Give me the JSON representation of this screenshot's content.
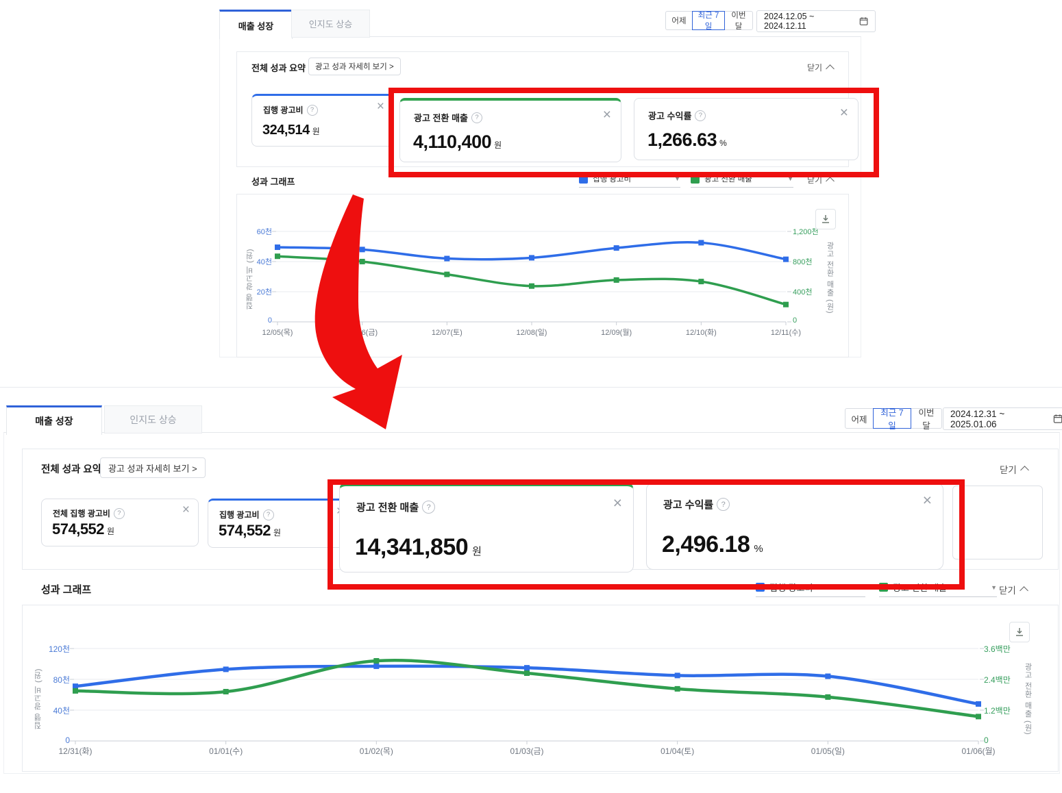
{
  "icons": {
    "help": "?",
    "close": "×",
    "dropdown": "▼"
  },
  "colors": {
    "accent_blue": "#2f6de8",
    "accent_green": "#2fa34f",
    "highlight_red": "#ee0f0f",
    "selected_blue": "#2f62d9",
    "tick_blue": "#4a7ad6",
    "tick_green": "#369e5d"
  },
  "top": {
    "tabs": [
      {
        "label": "매출 성장",
        "active": true
      },
      {
        "label": "인지도 상승",
        "active": false
      }
    ],
    "date": {
      "presets": [
        "어제",
        "최근 7일",
        "이번달"
      ],
      "selected": "최근 7일",
      "range": "2024.12.05 ~ 2024.12.11"
    },
    "summary": {
      "title": "전체 성과 요약",
      "detail_button": "광고 성과 자세히 보기 >",
      "close_label": "닫기",
      "cards": [
        {
          "label": "집행 광고비",
          "value": "324,514",
          "unit": "원"
        },
        {
          "label": "광고 전환 매출",
          "value": "4,110,400",
          "unit": "원"
        },
        {
          "label": "광고 수익률",
          "value": "1,266.63",
          "unit": "%"
        }
      ]
    },
    "graph": {
      "title": "성과 그래프",
      "close_label": "닫기"
    }
  },
  "bottom": {
    "tabs": [
      {
        "label": "매출 성장",
        "active": true
      },
      {
        "label": "인지도 상승",
        "active": false
      }
    ],
    "date": {
      "presets": [
        "어제",
        "최근 7일",
        "이번달"
      ],
      "selected": "최근 7일",
      "range": "2024.12.31 ~ 2025.01.06"
    },
    "summary": {
      "title": "전체 성과 요약",
      "detail_button": "광고 성과 자세히 보기 >",
      "close_label": "닫기",
      "cards": [
        {
          "label": "전체 집행 광고비",
          "value": "574,552",
          "unit": "원"
        },
        {
          "label": "집행 광고비",
          "value": "574,552",
          "unit": "원"
        },
        {
          "label": "광고 전환 매출",
          "value": "14,341,850",
          "unit": "원"
        },
        {
          "label": "광고 수익률",
          "value": "2,496.18",
          "unit": "%"
        }
      ]
    },
    "graph": {
      "title": "성과 그래프",
      "close_label": "닫기"
    }
  },
  "chart_data": [
    {
      "type": "line",
      "title": "성과 그래프 (2024.12.05 ~ 2024.12.11)",
      "x": [
        "12/05(목)",
        "12/06(금)",
        "12/07(토)",
        "12/08(일)",
        "12/09(월)",
        "12/10(화)",
        "12/11(수)"
      ],
      "series": [
        {
          "name": "집행 광고비",
          "axis": "left",
          "color": "#2f6de8",
          "unit": "천 원",
          "values": [
            49.5,
            48,
            42,
            42.5,
            49,
            52.5,
            41.5
          ]
        },
        {
          "name": "광고 전환 매출",
          "axis": "right",
          "color": "#2f9e4f",
          "unit": "천 원",
          "values": [
            870,
            800,
            630,
            475,
            555,
            535,
            230
          ]
        }
      ],
      "ylabel_left": "집행 광고비 (원)",
      "ylabel_right": "광고 전환 매출 (원)",
      "yticks_left": {
        "values": [
          0,
          20,
          40,
          60
        ],
        "labels": [
          "0",
          "20천",
          "40천",
          "60천"
        ]
      },
      "yticks_right": {
        "values": [
          0,
          400,
          800,
          1200
        ],
        "labels": [
          "0",
          "400천",
          "800천",
          "1,200천"
        ]
      },
      "ylim_left": [
        0,
        63.6
      ],
      "ylim_right": [
        0,
        1272
      ],
      "grid": true,
      "legend_position": "top-right"
    },
    {
      "type": "line",
      "title": "성과 그래프 (2024.12.31 ~ 2025.01.06)",
      "x": [
        "12/31(화)",
        "01/01(수)",
        "01/02(목)",
        "01/03(금)",
        "01/04(토)",
        "01/05(일)",
        "01/06(월)"
      ],
      "series": [
        {
          "name": "집행 광고비",
          "axis": "left",
          "color": "#2f6de8",
          "unit": "천 원",
          "values": [
            71,
            93,
            97,
            95,
            85,
            84,
            48
          ]
        },
        {
          "name": "광고 전환 매출",
          "axis": "right",
          "color": "#2f9e4f",
          "unit": "백만 원",
          "values": [
            1.95,
            1.92,
            3.12,
            2.64,
            2.03,
            1.71,
            0.95
          ]
        }
      ],
      "ylabel_left": "집행 광고비 (원)",
      "ylabel_right": "광고 전환 매출 (원)",
      "yticks_left": {
        "values": [
          0,
          40,
          80,
          120
        ],
        "labels": [
          "0",
          "40천",
          "80천",
          "120천"
        ]
      },
      "yticks_right": {
        "values": [
          0,
          1.2,
          2.4,
          3.6
        ],
        "labels": [
          "0",
          "1.2백만",
          "2.4백만",
          "3.6백만"
        ]
      },
      "ylim_left": [
        0,
        130.7
      ],
      "ylim_right": [
        0,
        3.92
      ],
      "grid": true,
      "legend_position": "top-right"
    }
  ]
}
